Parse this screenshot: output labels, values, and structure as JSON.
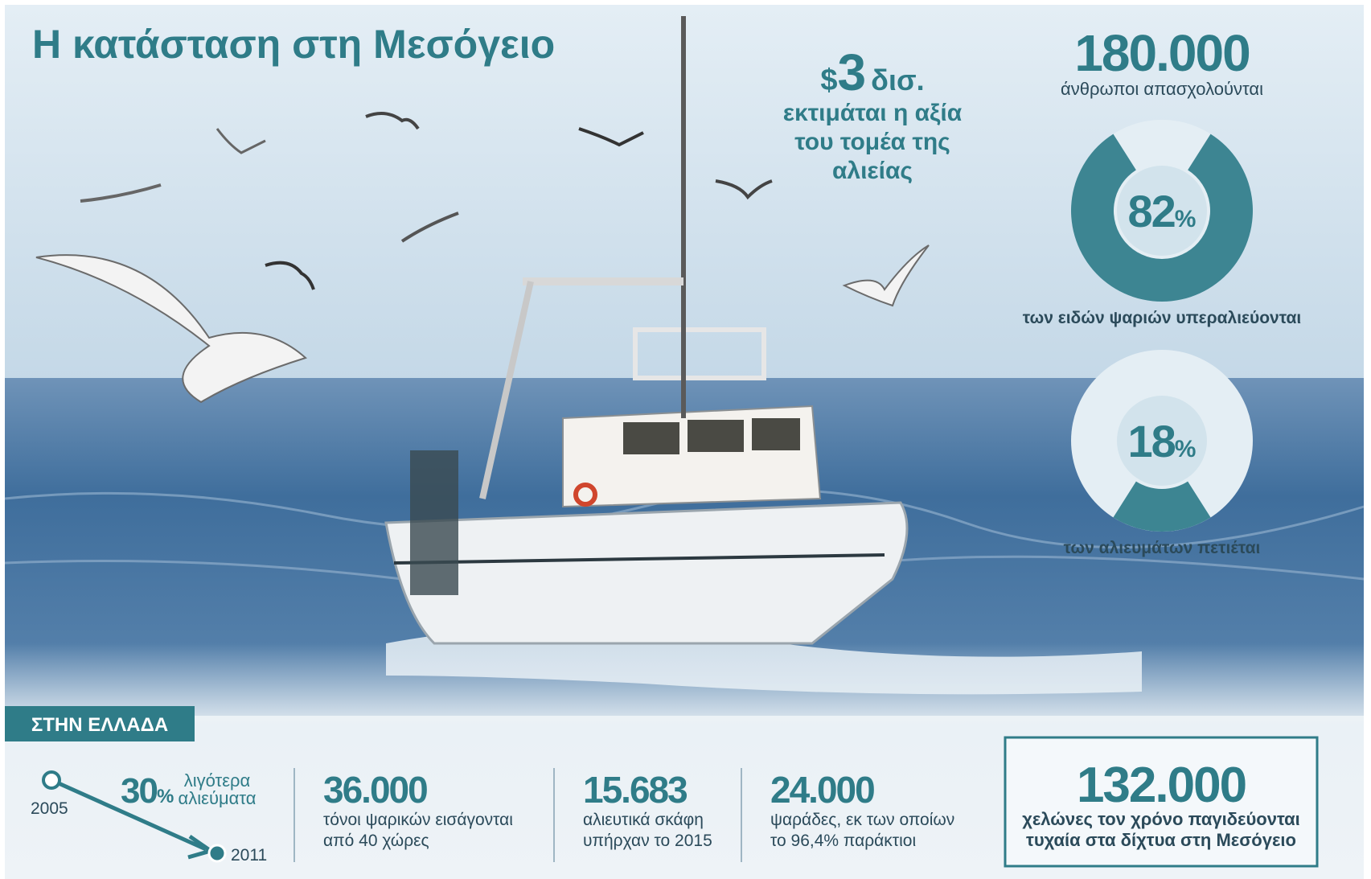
{
  "title": "Η κατάσταση στη Μεσόγειο",
  "sector_value": {
    "currency": "$",
    "amount": "3",
    "unit": "δισ.",
    "caption": [
      "εκτιμάται η αξία",
      "του τομέα της",
      "αλιείας"
    ]
  },
  "employment": {
    "number": "180.000",
    "caption": "άνθρωποι απασχολούνται"
  },
  "donuts": [
    {
      "value": 82,
      "unit": "%",
      "caption": "των ειδών ψαριών υπεραλιεύονται"
    },
    {
      "value": 18,
      "unit": "%",
      "caption": "των αλιευμάτων πετιέται"
    }
  ],
  "greece": {
    "label": "ΣΤΗΝ ΕΛΛΑΔΑ",
    "trend": {
      "start": "2005",
      "end": "2011",
      "value": "30",
      "unit": "%",
      "caption": [
        "λιγότερα",
        "αλιεύματα"
      ]
    },
    "stats": [
      {
        "number": "36.000",
        "caption": [
          "τόνοι ψαρικών εισάγονται",
          "από 40 χώρες"
        ]
      },
      {
        "number": "15.683",
        "caption": [
          "αλιευτικά σκάφη",
          "υπήρχαν το 2015"
        ]
      },
      {
        "number": "24.000",
        "caption": [
          "ψαράδες, εκ των οποίων",
          "το 96,4% παράκτιοι"
        ]
      }
    ]
  },
  "turtles": {
    "number": "132.000",
    "caption": [
      "χελώνες τον χρόνο παγιδεύονται",
      "τυχαία στα δίχτυα στη Μεσόγειο"
    ]
  }
}
